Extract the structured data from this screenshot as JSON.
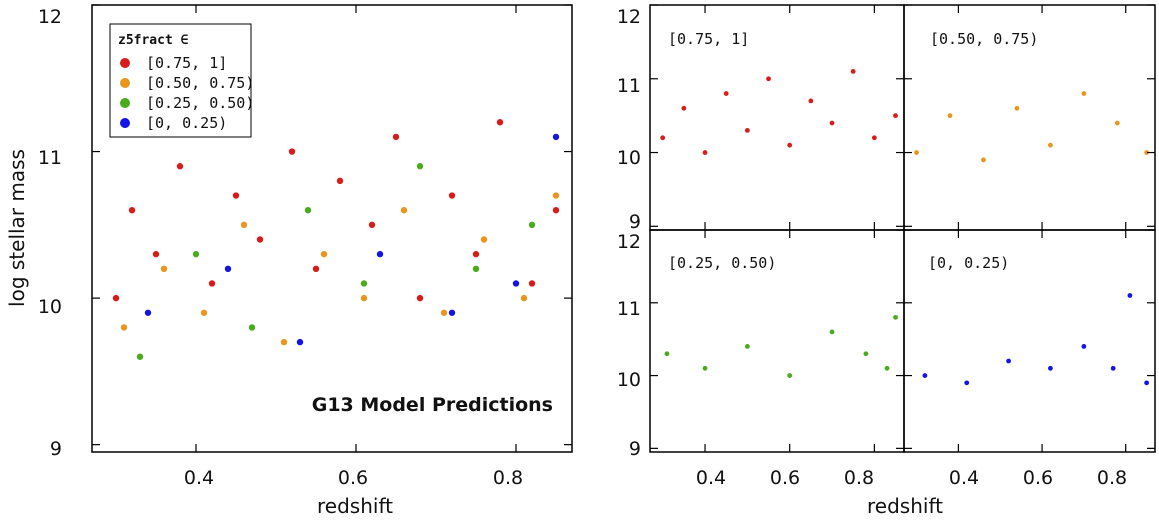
{
  "chart_data": [
    {
      "type": "scatter",
      "panel": "main",
      "xlabel": "redshift",
      "ylabel": "log stellar mass",
      "xlim": [
        0.27,
        0.87
      ],
      "ylim": [
        8.95,
        12.0
      ],
      "xticks": [
        "0.4",
        "0.6",
        "0.8"
      ],
      "yticks": [
        "9",
        "10",
        "11",
        "12"
      ],
      "legend_title": "z5fract ∈",
      "legend_position": "top-left",
      "annotation": "G13 Model Predictions",
      "series": [
        {
          "name": "[0.75, 1]",
          "color": "#d81b1b",
          "points": [
            [
              0.3,
              10.0
            ],
            [
              0.32,
              10.6
            ],
            [
              0.35,
              10.3
            ],
            [
              0.38,
              10.9
            ],
            [
              0.42,
              10.1
            ],
            [
              0.45,
              10.7
            ],
            [
              0.48,
              10.4
            ],
            [
              0.52,
              11.0
            ],
            [
              0.55,
              10.2
            ],
            [
              0.58,
              10.8
            ],
            [
              0.62,
              10.5
            ],
            [
              0.65,
              11.1
            ],
            [
              0.68,
              10.0
            ],
            [
              0.72,
              10.7
            ],
            [
              0.75,
              10.3
            ],
            [
              0.78,
              11.2
            ],
            [
              0.82,
              10.1
            ],
            [
              0.85,
              10.6
            ]
          ]
        },
        {
          "name": "[0.50, 0.75)",
          "color": "#e8961e",
          "points": [
            [
              0.31,
              9.8
            ],
            [
              0.36,
              10.2
            ],
            [
              0.41,
              9.9
            ],
            [
              0.46,
              10.5
            ],
            [
              0.51,
              9.7
            ],
            [
              0.56,
              10.3
            ],
            [
              0.61,
              10.0
            ],
            [
              0.66,
              10.6
            ],
            [
              0.71,
              9.9
            ],
            [
              0.76,
              10.4
            ],
            [
              0.81,
              10.0
            ],
            [
              0.85,
              10.7
            ]
          ]
        },
        {
          "name": "[0.25, 0.50)",
          "color": "#4aab1c",
          "points": [
            [
              0.33,
              9.6
            ],
            [
              0.4,
              10.3
            ],
            [
              0.47,
              9.8
            ],
            [
              0.54,
              10.6
            ],
            [
              0.61,
              10.1
            ],
            [
              0.68,
              10.9
            ],
            [
              0.75,
              10.2
            ],
            [
              0.82,
              10.5
            ]
          ]
        },
        {
          "name": "[0, 0.25)",
          "color": "#1414e6",
          "points": [
            [
              0.34,
              9.9
            ],
            [
              0.44,
              10.2
            ],
            [
              0.53,
              9.7
            ],
            [
              0.63,
              10.3
            ],
            [
              0.72,
              9.9
            ],
            [
              0.8,
              10.1
            ],
            [
              0.85,
              11.1
            ]
          ]
        }
      ]
    },
    {
      "type": "scatter",
      "panel": "top-left",
      "label": "[0.75, 1]",
      "color": "#d81b1b",
      "xlim": [
        0.27,
        0.87
      ],
      "ylim": [
        8.95,
        12.0
      ],
      "yticks": [
        "9",
        "10",
        "11",
        "12"
      ],
      "points": [
        [
          0.3,
          10.2
        ],
        [
          0.35,
          10.6
        ],
        [
          0.4,
          10.0
        ],
        [
          0.45,
          10.8
        ],
        [
          0.5,
          10.3
        ],
        [
          0.55,
          11.0
        ],
        [
          0.6,
          10.1
        ],
        [
          0.65,
          10.7
        ],
        [
          0.7,
          10.4
        ],
        [
          0.75,
          11.1
        ],
        [
          0.8,
          10.2
        ],
        [
          0.85,
          10.5
        ]
      ]
    },
    {
      "type": "scatter",
      "panel": "top-right",
      "label": "[0.50, 0.75)",
      "color": "#e8961e",
      "xlim": [
        0.27,
        0.87
      ],
      "ylim": [
        8.95,
        12.0
      ],
      "points": [
        [
          0.3,
          10.0
        ],
        [
          0.38,
          10.5
        ],
        [
          0.46,
          9.9
        ],
        [
          0.54,
          10.6
        ],
        [
          0.62,
          10.1
        ],
        [
          0.7,
          10.8
        ],
        [
          0.78,
          10.4
        ],
        [
          0.85,
          10.0
        ]
      ]
    },
    {
      "type": "scatter",
      "panel": "bottom-left",
      "label": "[0.25, 0.50)",
      "color": "#4aab1c",
      "xlim": [
        0.27,
        0.87
      ],
      "ylim": [
        8.95,
        12.0
      ],
      "xticks": [
        "0.4",
        "0.6",
        "0.8"
      ],
      "yticks": [
        "9",
        "10",
        "11",
        "12"
      ],
      "points": [
        [
          0.31,
          10.3
        ],
        [
          0.4,
          10.1
        ],
        [
          0.5,
          10.4
        ],
        [
          0.6,
          10.0
        ],
        [
          0.7,
          10.6
        ],
        [
          0.78,
          10.3
        ],
        [
          0.83,
          10.1
        ],
        [
          0.85,
          10.8
        ]
      ]
    },
    {
      "type": "scatter",
      "panel": "bottom-right",
      "label": "[0, 0.25)",
      "color": "#1414e6",
      "xlim": [
        0.27,
        0.87
      ],
      "ylim": [
        8.95,
        12.0
      ],
      "xticks": [
        "0.4",
        "0.6",
        "0.8"
      ],
      "points": [
        [
          0.32,
          10.0
        ],
        [
          0.42,
          9.9
        ],
        [
          0.52,
          10.2
        ],
        [
          0.62,
          10.1
        ],
        [
          0.7,
          10.4
        ],
        [
          0.77,
          10.1
        ],
        [
          0.81,
          11.1
        ],
        [
          0.85,
          9.9
        ]
      ]
    }
  ],
  "right_xlabel": "redshift"
}
